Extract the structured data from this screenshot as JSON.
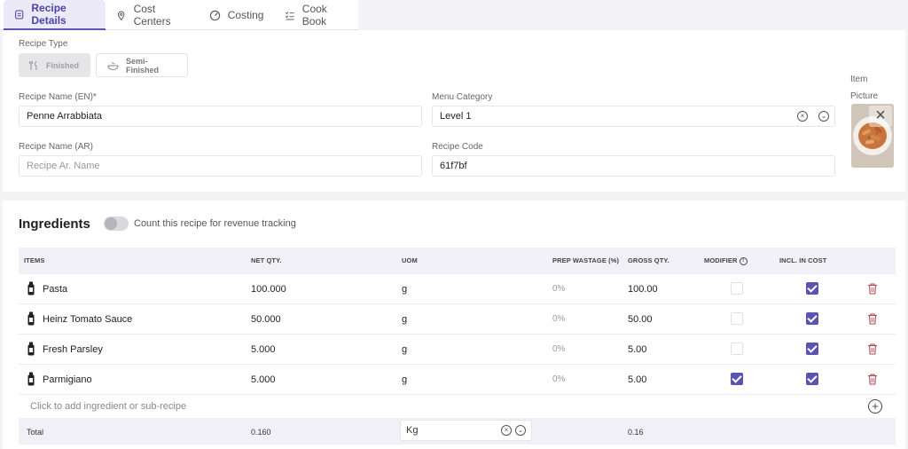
{
  "tabs": [
    {
      "label": "Recipe Details",
      "icon": "document-icon",
      "active": true
    },
    {
      "label": "Cost Centers",
      "icon": "location-pin-icon"
    },
    {
      "label": "Costing",
      "icon": "gauge-icon"
    },
    {
      "label": "Cook Book",
      "icon": "checklist-icon"
    }
  ],
  "details": {
    "recipe_type_label": "Recipe Type",
    "type_finished": "Finished",
    "type_semi_finished": "Semi-Finished",
    "name_en_label": "Recipe Name (EN)*",
    "name_en_value": "Penne Arrabbiata",
    "name_ar_label": "Recipe Name (AR)",
    "name_ar_placeholder": "Recipe Ar. Name",
    "menu_category_label": "Menu Category",
    "menu_category_value": "Level 1",
    "recipe_code_label": "Recipe Code",
    "recipe_code_value": "61f7bf",
    "item_picture_label_1": "Item",
    "item_picture_label_2": "Picture"
  },
  "ingredients": {
    "title": "Ingredients",
    "toggle_label": "Count this recipe for revenue tracking",
    "toggle_on": false,
    "columns": {
      "items": "ITEMS",
      "net_qty": "NET QTY.",
      "uom": "UOM",
      "prep_wastage": "PREP WASTAGE (%)",
      "gross_qty": "GROSS QTY.",
      "modifier": "MODIFIER",
      "incl_in_cost": "INCL. IN COST"
    },
    "rows": [
      {
        "name": "Pasta",
        "net_qty": "100.000",
        "uom": "g",
        "wastage": "0%",
        "gross": "100.00",
        "modifier": false,
        "incl": true
      },
      {
        "name": "Heinz Tomato Sauce",
        "net_qty": "50.000",
        "uom": "g",
        "wastage": "0%",
        "gross": "50.00",
        "modifier": false,
        "incl": true
      },
      {
        "name": "Fresh Parsley",
        "net_qty": "5.000",
        "uom": "g",
        "wastage": "0%",
        "gross": "5.00",
        "modifier": false,
        "incl": true
      },
      {
        "name": "Parmigiano",
        "net_qty": "5.000",
        "uom": "g",
        "wastage": "0%",
        "gross": "5.00",
        "modifier": true,
        "incl": true
      }
    ],
    "add_placeholder": "Click to add ingredient or sub-recipe",
    "total": {
      "label": "Total",
      "net_qty": "0.160",
      "uom": "Kg",
      "gross": "0.16"
    }
  },
  "colors": {
    "accent": "#5a54b0",
    "header_bg": "#f1f0f7"
  }
}
